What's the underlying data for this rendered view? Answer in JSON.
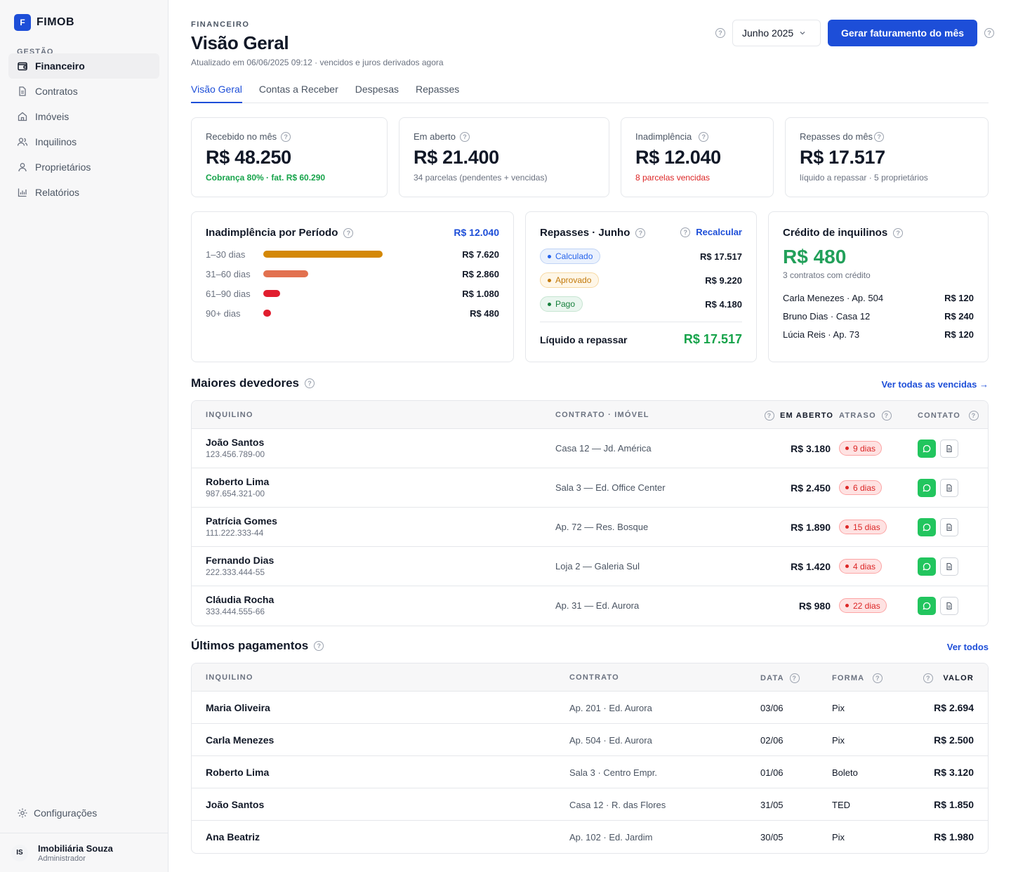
{
  "app": {
    "logo_letter": "F",
    "name": "FIMOB"
  },
  "sidebar": {
    "section": "GESTÃO",
    "items": [
      {
        "label": "Financeiro",
        "icon": "wallet-icon",
        "active": true
      },
      {
        "label": "Contratos",
        "icon": "document-icon"
      },
      {
        "label": "Imóveis",
        "icon": "home-icon"
      },
      {
        "label": "Inquilinos",
        "icon": "users-icon"
      },
      {
        "label": "Proprietários",
        "icon": "user-icon"
      },
      {
        "label": "Relatórios",
        "icon": "bar-chart-icon"
      }
    ],
    "settings_label": "Configurações",
    "user": {
      "initials": "IS",
      "name": "Imobiliária Souza",
      "role": "Administrador"
    }
  },
  "header": {
    "eyebrow": "FINANCEIRO",
    "title": "Visão Geral",
    "updated": "Atualizado em 06/06/2025 09:12 · vencidos e juros derivados agora",
    "month": "Junho 2025",
    "primary_action": "Gerar faturamento do mês"
  },
  "tabs": [
    "Visão Geral",
    "Contas a Receber",
    "Despesas",
    "Repasses"
  ],
  "kpis": [
    {
      "label": "Recebido no mês",
      "value": "R$ 48.250",
      "sub": "Cobrança 80% · fat. R$ 60.290",
      "sub_color": "#16a34a"
    },
    {
      "label": "Em aberto",
      "value": "R$ 21.400",
      "sub": "34 parcelas (pendentes + vencidas)",
      "sub_color": "#6b7280"
    },
    {
      "label": "Inadimplência",
      "value": "R$ 12.040",
      "sub": "8 parcelas vencidas",
      "sub_color": "#dc2626"
    },
    {
      "label": "Repasses do mês",
      "value": "R$ 17.517",
      "sub": "líquido a repassar · 5 proprietários",
      "sub_color": "#6b7280"
    }
  ],
  "aging": {
    "title": "Inadimplência por Período",
    "total": "R$ 12.040",
    "rows": [
      {
        "label": "1–30 dias",
        "value": "R$ 7.620",
        "amount": 7620,
        "color": "#d48806"
      },
      {
        "label": "31–60 dias",
        "value": "R$ 2.860",
        "amount": 2860,
        "color": "#e2714f"
      },
      {
        "label": "61–90 dias",
        "value": "R$ 1.080",
        "amount": 1080,
        "color": "#e11d2e"
      },
      {
        "label": "90+ dias",
        "value": "R$ 480",
        "amount": 480,
        "color": "#e11d2e"
      }
    ]
  },
  "repasses": {
    "title": "Repasses · Junho",
    "recalc": "Recalcular",
    "rows": [
      {
        "status": "Calculado",
        "value": "R$ 17.517",
        "bg": "#eaf1fd",
        "border": "#bfd3f5",
        "color": "#2563eb"
      },
      {
        "status": "Aprovado",
        "value": "R$ 9.220",
        "bg": "#fef6e7",
        "border": "#f7d9a3",
        "color": "#c2790a"
      },
      {
        "status": "Pago",
        "value": "R$ 4.180",
        "bg": "#eaf6ef",
        "border": "#c6e5d1",
        "color": "#17803d"
      }
    ],
    "total_label": "Líquido a repassar",
    "total_value": "R$ 17.517"
  },
  "credit": {
    "title": "Crédito de inquilinos",
    "value": "R$ 480",
    "sub": "3 contratos com crédito",
    "rows": [
      {
        "name": "Carla Menezes · Ap. 504",
        "value": "R$ 120"
      },
      {
        "name": "Bruno Dias · Casa 12",
        "value": "R$ 240"
      },
      {
        "name": "Lúcia Reis · Ap. 73",
        "value": "R$ 120"
      }
    ]
  },
  "debtors": {
    "title": "Maiores devedores",
    "link": "Ver todas as vencidas →",
    "headers": {
      "tenant": "INQUILINO",
      "contract": "CONTRATO · IMÓVEL",
      "open": "EM ABERTO",
      "late": "ATRASO",
      "contact": "CONTATO"
    },
    "rows": [
      {
        "name": "João Santos",
        "doc": "123.456.789-00",
        "contract": "Casa 12 — Jd. América",
        "amount": "R$ 3.180",
        "late": "9 dias"
      },
      {
        "name": "Roberto Lima",
        "doc": "987.654.321-00",
        "contract": "Sala 3 — Ed. Office Center",
        "amount": "R$ 2.450",
        "late": "6 dias"
      },
      {
        "name": "Patrícia Gomes",
        "doc": "111.222.333-44",
        "contract": "Ap. 72 — Res. Bosque",
        "amount": "R$ 1.890",
        "late": "15 dias"
      },
      {
        "name": "Fernando Dias",
        "doc": "222.333.444-55",
        "contract": "Loja 2 — Galeria Sul",
        "amount": "R$ 1.420",
        "late": "4 dias"
      },
      {
        "name": "Cláudia Rocha",
        "doc": "333.444.555-66",
        "contract": "Ap. 31 — Ed. Aurora",
        "amount": "R$ 980",
        "late": "22 dias"
      }
    ]
  },
  "payments": {
    "title": "Últimos pagamentos",
    "link": "Ver todos",
    "headers": {
      "tenant": "INQUILINO",
      "contract": "CONTRATO",
      "date": "DATA",
      "method": "FORMA",
      "value": "VALOR"
    },
    "rows": [
      {
        "name": "Maria Oliveira",
        "contract": "Ap. 201 · Ed. Aurora",
        "date": "03/06",
        "method": "Pix",
        "value": "R$ 2.694"
      },
      {
        "name": "Carla Menezes",
        "contract": "Ap. 504 · Ed. Aurora",
        "date": "02/06",
        "method": "Pix",
        "value": "R$ 2.500"
      },
      {
        "name": "Roberto Lima",
        "contract": "Sala 3 · Centro Empr.",
        "date": "01/06",
        "method": "Boleto",
        "value": "R$ 3.120"
      },
      {
        "name": "João Santos",
        "contract": "Casa 12 · R. das Flores",
        "date": "31/05",
        "method": "TED",
        "value": "R$ 1.850"
      },
      {
        "name": "Ana Beatriz",
        "contract": "Ap. 102 · Ed. Jardim",
        "date": "30/05",
        "method": "Pix",
        "value": "R$ 1.980"
      }
    ]
  }
}
